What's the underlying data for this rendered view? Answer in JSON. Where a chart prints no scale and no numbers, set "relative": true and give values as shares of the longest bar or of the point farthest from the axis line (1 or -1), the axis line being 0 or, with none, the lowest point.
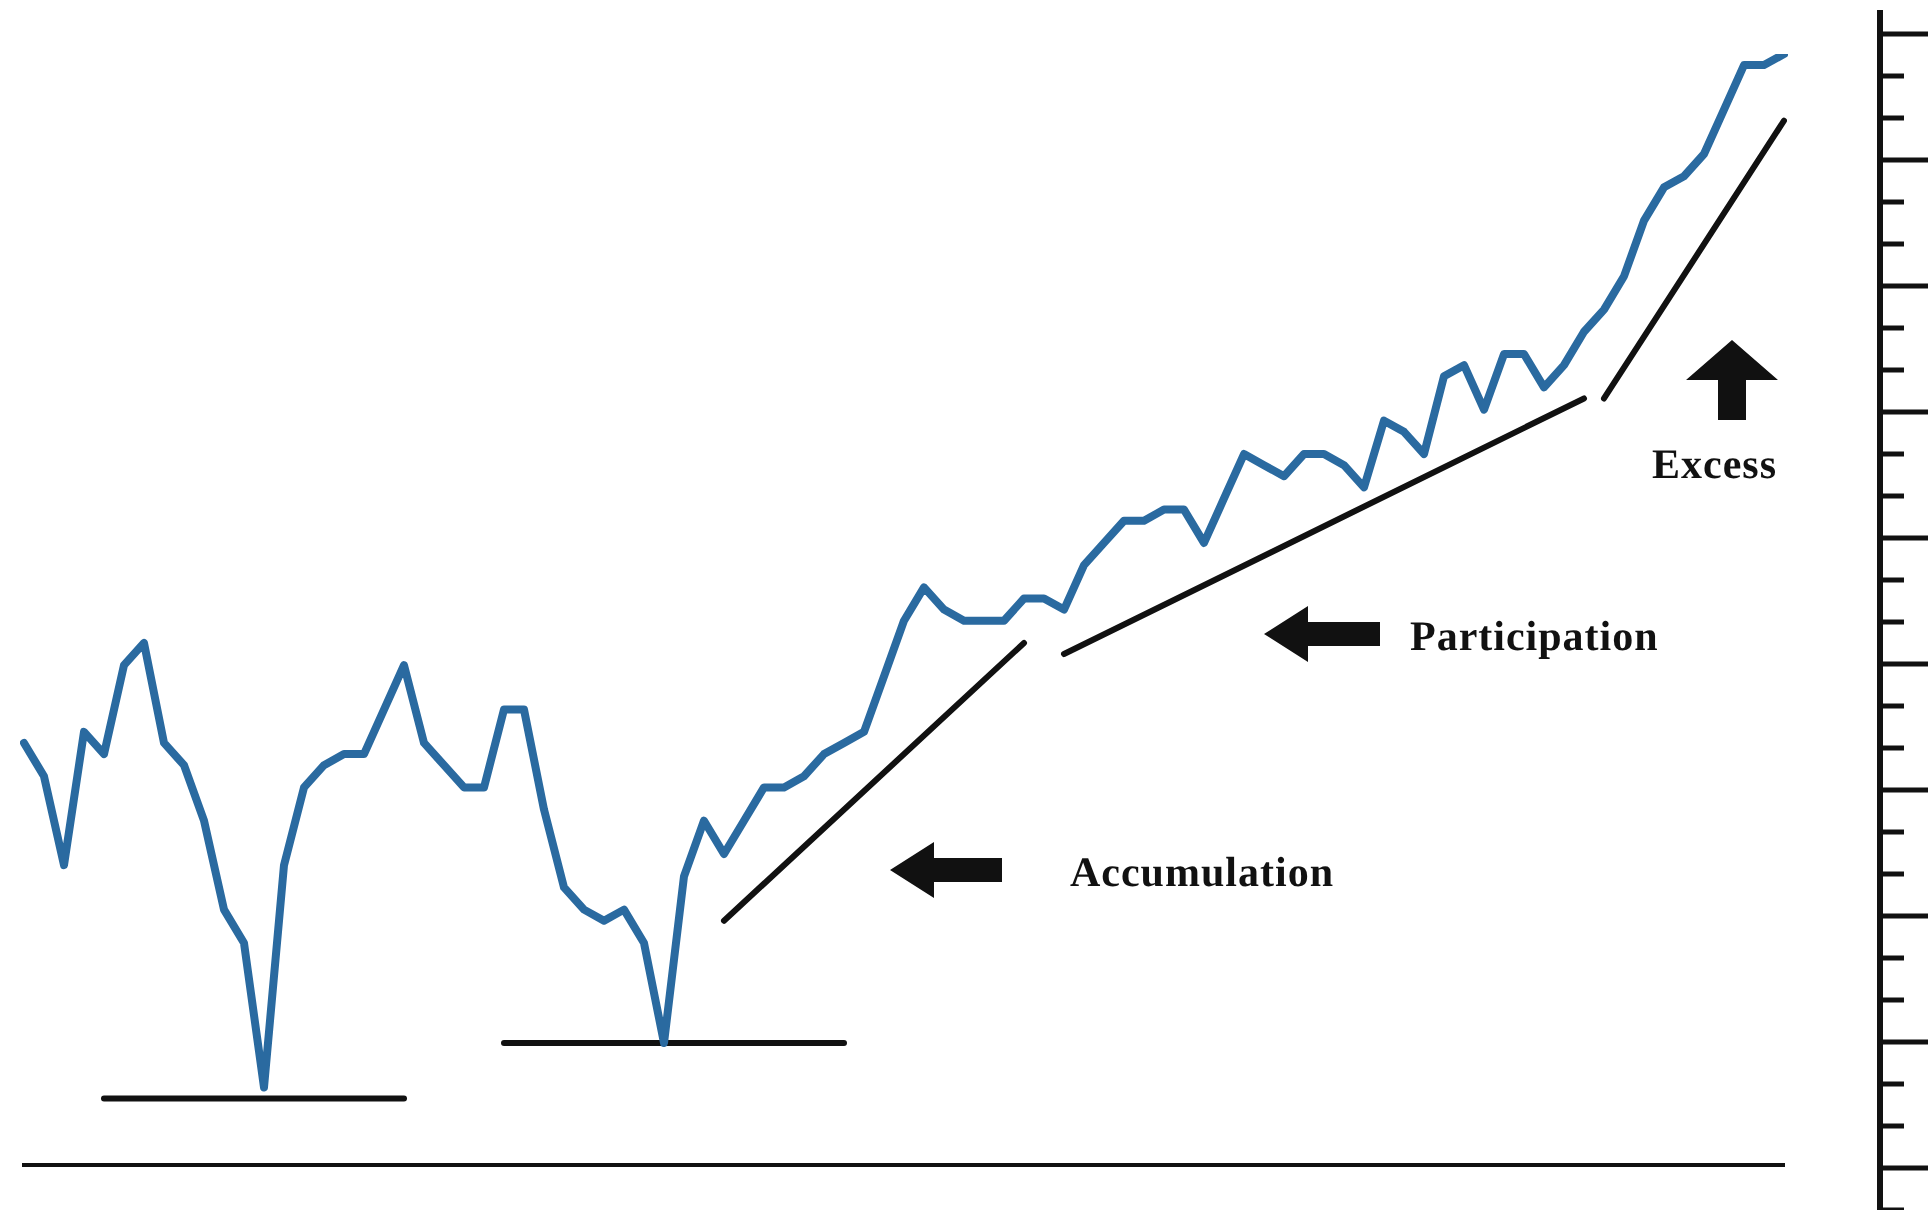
{
  "chart_data": {
    "type": "line",
    "relative": true,
    "legend": false,
    "grid": false,
    "line_style": "solid",
    "marker": "none",
    "categories": [
      null,
      null,
      null,
      null,
      null,
      null,
      null,
      null,
      null,
      null,
      null,
      null,
      null,
      null,
      null,
      null,
      null,
      null,
      null,
      null,
      null,
      null,
      null,
      null,
      null,
      null,
      null,
      null,
      null,
      null,
      null,
      null,
      null,
      null,
      null,
      null,
      null,
      null,
      null,
      null,
      null,
      null,
      null,
      null,
      null,
      null,
      null,
      null,
      null,
      null,
      null,
      null,
      null,
      null,
      null,
      null,
      null,
      null,
      null,
      null,
      null,
      null,
      null,
      null,
      null,
      null,
      null,
      null,
      null,
      null,
      null,
      null,
      null,
      null,
      null,
      null,
      null,
      null,
      null,
      null,
      null,
      null,
      null,
      null,
      null,
      null,
      null,
      null,
      null
    ],
    "series": [
      {
        "color": "#2a6aa0",
        "values": [
          0.38,
          0.35,
          0.27,
          0.39,
          0.37,
          0.45,
          0.47,
          0.38,
          0.36,
          0.31,
          0.23,
          0.2,
          0.07,
          0.27,
          0.34,
          0.36,
          0.37,
          0.37,
          0.41,
          0.45,
          0.38,
          0.36,
          0.34,
          0.34,
          0.41,
          0.41,
          0.32,
          0.25,
          0.23,
          0.22,
          0.23,
          0.2,
          0.11,
          0.26,
          0.31,
          0.28,
          0.31,
          0.34,
          0.34,
          0.35,
          0.37,
          0.38,
          0.39,
          0.44,
          0.49,
          0.52,
          0.5,
          0.49,
          0.49,
          0.49,
          0.51,
          0.51,
          0.5,
          0.54,
          0.56,
          0.58,
          0.58,
          0.59,
          0.59,
          0.56,
          0.6,
          0.64,
          0.63,
          0.62,
          0.64,
          0.64,
          0.63,
          0.61,
          0.67,
          0.66,
          0.64,
          0.71,
          0.72,
          0.68,
          0.73,
          0.73,
          0.7,
          0.72,
          0.75,
          0.77,
          0.8,
          0.85,
          0.88,
          0.89,
          0.91,
          0.95,
          0.99,
          0.99,
          1
        ]
      },
      {
        "color": "#111111",
        "values": [
          null,
          null,
          null,
          null,
          0.06,
          null,
          null,
          null,
          null,
          null,
          null,
          null,
          null,
          null,
          null,
          null,
          null,
          null,
          null,
          0.06,
          null,
          null,
          null,
          null,
          null,
          null,
          null,
          null,
          null,
          null,
          null,
          null,
          null,
          null,
          null,
          null,
          null,
          null,
          null,
          null,
          null,
          null,
          null,
          null,
          null,
          null,
          null,
          null,
          null,
          null,
          null,
          null,
          null,
          null,
          null,
          null,
          null,
          null,
          null,
          null,
          null,
          null,
          null,
          null,
          null,
          null,
          null,
          null,
          null,
          null,
          null,
          null,
          null,
          null,
          null,
          null,
          null,
          null,
          null,
          null,
          null,
          null,
          null,
          null,
          null,
          null,
          null,
          null,
          null
        ]
      },
      {
        "color": "#111111",
        "values": [
          null,
          null,
          null,
          null,
          null,
          null,
          null,
          null,
          null,
          null,
          null,
          null,
          null,
          null,
          null,
          null,
          null,
          null,
          null,
          null,
          null,
          null,
          null,
          null,
          0.11,
          null,
          null,
          null,
          null,
          null,
          null,
          null,
          null,
          null,
          null,
          null,
          null,
          null,
          null,
          null,
          null,
          0.11,
          null,
          null,
          null,
          null,
          null,
          null,
          null,
          null,
          null,
          null,
          null,
          null,
          null,
          null,
          null,
          null,
          null,
          null,
          null,
          null,
          null,
          null,
          null,
          null,
          null,
          null,
          null,
          null,
          null,
          null,
          null,
          null,
          null,
          null,
          null,
          null,
          null,
          null,
          null,
          null,
          null,
          null,
          null,
          null,
          null,
          null,
          null
        ]
      },
      {
        "color": "#111111",
        "values": [
          null,
          null,
          null,
          null,
          null,
          null,
          null,
          null,
          null,
          null,
          null,
          null,
          null,
          null,
          null,
          null,
          null,
          null,
          null,
          null,
          null,
          null,
          null,
          null,
          null,
          null,
          null,
          null,
          null,
          null,
          null,
          null,
          null,
          null,
          null,
          0.22,
          null,
          null,
          null,
          null,
          null,
          null,
          null,
          null,
          null,
          null,
          null,
          null,
          null,
          null,
          0.47,
          null,
          null,
          null,
          null,
          null,
          null,
          null,
          null,
          null,
          null,
          null,
          null,
          null,
          null,
          null,
          null,
          null,
          null,
          null,
          null,
          null,
          null,
          null,
          null,
          null,
          null,
          null,
          null,
          null,
          null,
          null,
          null,
          null,
          null,
          null,
          null,
          null,
          null
        ]
      },
      {
        "color": "#111111",
        "values": [
          null,
          null,
          null,
          null,
          null,
          null,
          null,
          null,
          null,
          null,
          null,
          null,
          null,
          null,
          null,
          null,
          null,
          null,
          null,
          null,
          null,
          null,
          null,
          null,
          null,
          null,
          null,
          null,
          null,
          null,
          null,
          null,
          null,
          null,
          null,
          null,
          null,
          null,
          null,
          null,
          null,
          null,
          null,
          null,
          null,
          null,
          null,
          null,
          null,
          null,
          null,
          null,
          0.46,
          null,
          null,
          null,
          null,
          null,
          null,
          null,
          null,
          null,
          null,
          null,
          null,
          null,
          null,
          null,
          null,
          null,
          null,
          null,
          null,
          null,
          null,
          null,
          null,
          null,
          0.69,
          null,
          null,
          null,
          null,
          null,
          null,
          null,
          null,
          null,
          null
        ]
      },
      {
        "color": "#111111",
        "values": [
          null,
          null,
          null,
          null,
          null,
          null,
          null,
          null,
          null,
          null,
          null,
          null,
          null,
          null,
          null,
          null,
          null,
          null,
          null,
          null,
          null,
          null,
          null,
          null,
          null,
          null,
          null,
          null,
          null,
          null,
          null,
          null,
          null,
          null,
          null,
          null,
          null,
          null,
          null,
          null,
          null,
          null,
          null,
          null,
          null,
          null,
          null,
          null,
          null,
          null,
          null,
          null,
          null,
          null,
          null,
          null,
          null,
          null,
          null,
          null,
          null,
          null,
          null,
          null,
          null,
          null,
          null,
          null,
          null,
          null,
          null,
          null,
          null,
          null,
          null,
          null,
          null,
          null,
          null,
          0.69,
          null,
          null,
          null,
          null,
          null,
          null,
          null,
          null,
          0.94
        ]
      }
    ],
    "annotations": [
      "Accumulation",
      "Participation",
      "Excess"
    ]
  }
}
